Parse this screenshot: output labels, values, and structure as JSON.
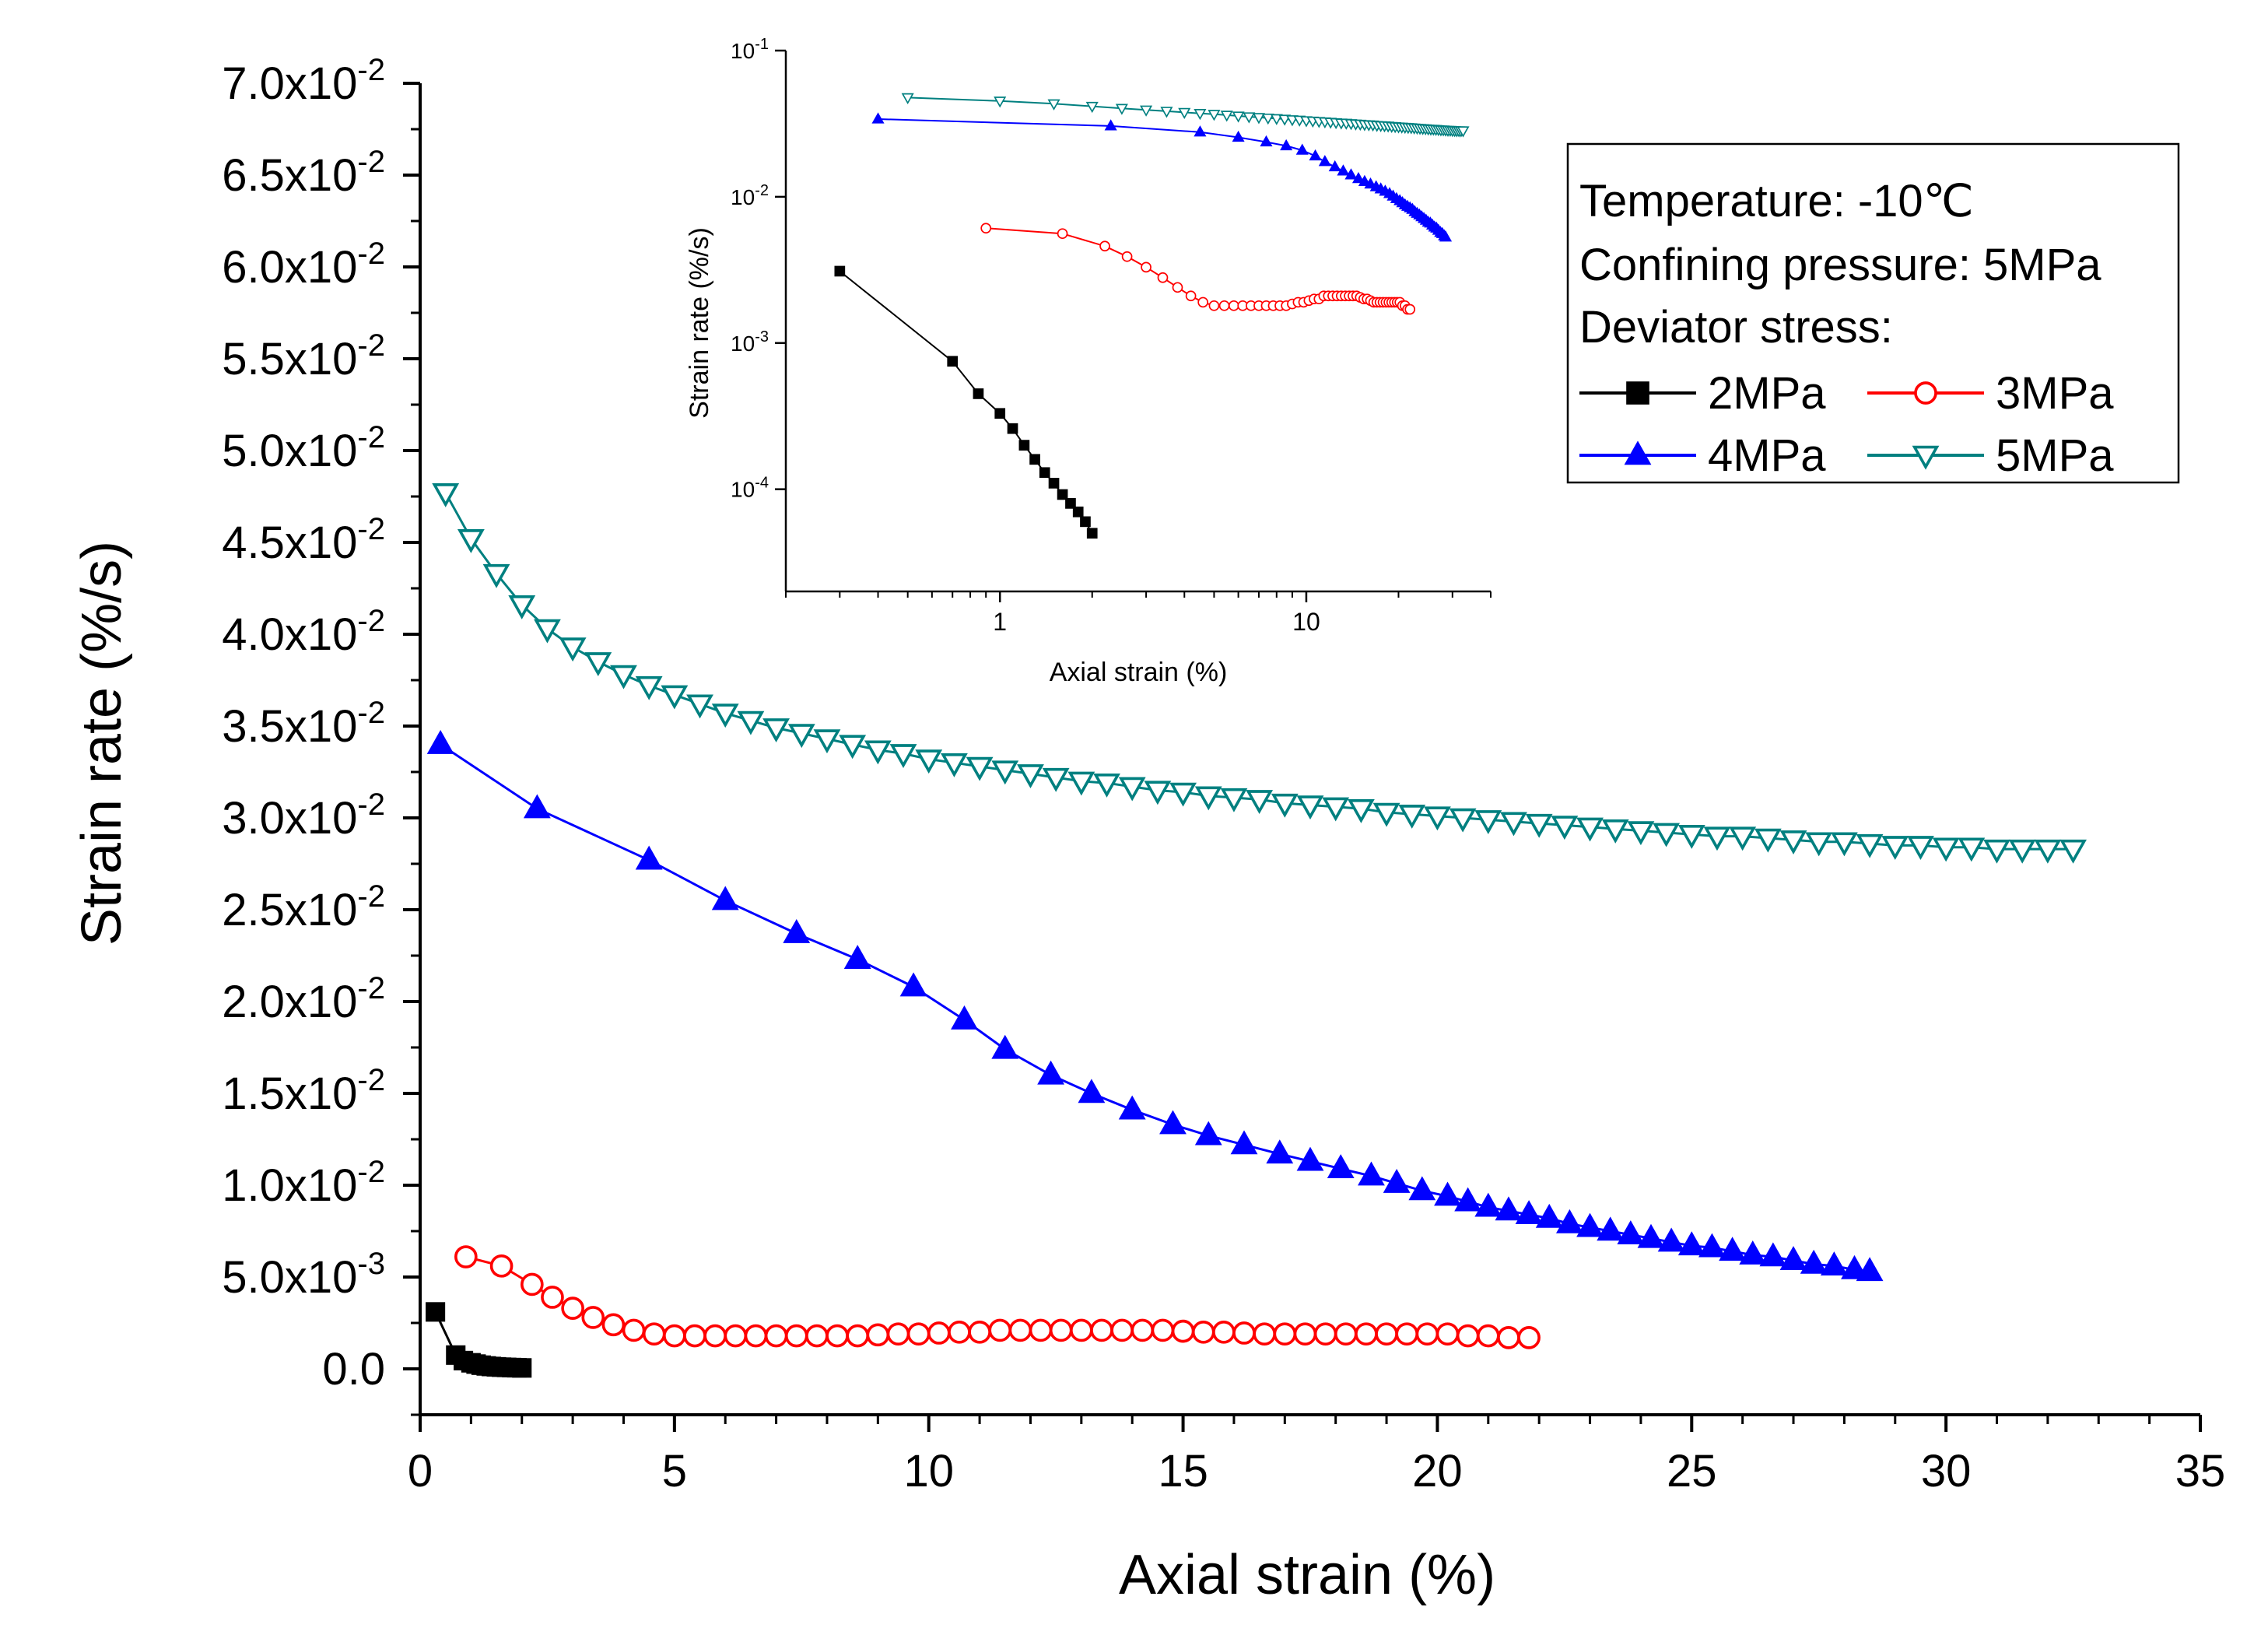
{
  "chart_data": [
    {
      "type": "scatter",
      "xlabel": "Axial strain (%)",
      "ylabel": "Strain rate (%/s)",
      "xlim": [
        0,
        35
      ],
      "ylim": [
        -0.0025,
        0.07
      ],
      "x_ticks": [
        {
          "value": 0,
          "label": "0"
        },
        {
          "value": 5,
          "label": "5"
        },
        {
          "value": 10,
          "label": "10"
        },
        {
          "value": 15,
          "label": "15"
        },
        {
          "value": 20,
          "label": "20"
        },
        {
          "value": 25,
          "label": "25"
        },
        {
          "value": 30,
          "label": "30"
        },
        {
          "value": 35,
          "label": "35"
        }
      ],
      "y_ticks": [
        {
          "value": 0,
          "mant": "0.0",
          "exp": ""
        },
        {
          "value": 0.005,
          "mant": "5.0x10",
          "exp": "-3"
        },
        {
          "value": 0.01,
          "mant": "1.0x10",
          "exp": "-2"
        },
        {
          "value": 0.015,
          "mant": "1.5x10",
          "exp": "-2"
        },
        {
          "value": 0.02,
          "mant": "2.0x10",
          "exp": "-2"
        },
        {
          "value": 0.025,
          "mant": "2.5x10",
          "exp": "-2"
        },
        {
          "value": 0.03,
          "mant": "3.0x10",
          "exp": "-2"
        },
        {
          "value": 0.035,
          "mant": "3.5x10",
          "exp": "-2"
        },
        {
          "value": 0.04,
          "mant": "4.0x10",
          "exp": "-2"
        },
        {
          "value": 0.045,
          "mant": "4.5x10",
          "exp": "-2"
        },
        {
          "value": 0.05,
          "mant": "5.0x10",
          "exp": "-2"
        },
        {
          "value": 0.055,
          "mant": "5.5x10",
          "exp": "-2"
        },
        {
          "value": 0.06,
          "mant": "6.0x10",
          "exp": "-2"
        },
        {
          "value": 0.065,
          "mant": "6.5x10",
          "exp": "-2"
        },
        {
          "value": 0.07,
          "mant": "7.0x10",
          "exp": "-2"
        }
      ],
      "legend": {
        "placement": "top-right",
        "lines": [
          "Temperature: -10℃",
          "Confining pressure: 5MPa",
          "Deviator stress:"
        ]
      },
      "series": [
        {
          "name": "2MPa",
          "color": "#000000",
          "marker": "square-filled",
          "x": [
            0.3,
            0.7,
            0.85,
            1.0,
            1.1,
            1.2,
            1.3,
            1.4,
            1.5,
            1.6,
            1.7,
            1.8,
            1.9,
            2.0
          ],
          "y": [
            0.0031,
            0.00075,
            0.00045,
            0.00033,
            0.00026,
            0.0002,
            0.00016,
            0.00013,
            0.00011,
            9.2e-05,
            8e-05,
            7e-05,
            6e-05,
            5e-05
          ]
        },
        {
          "name": "3MPa",
          "color": "#ff0000",
          "marker": "circle-open",
          "x": [
            0.9,
            1.6,
            2.2,
            2.6,
            3.0,
            3.4,
            3.8,
            4.2,
            4.6,
            5.0,
            5.4,
            5.8,
            6.2,
            6.6,
            7.0,
            7.4,
            7.8,
            8.2,
            8.6,
            9.0,
            9.4,
            9.8,
            10.2,
            10.6,
            11.0,
            11.4,
            11.8,
            12.2,
            12.6,
            13.0,
            13.4,
            13.8,
            14.2,
            14.6,
            15.0,
            15.4,
            15.8,
            16.2,
            16.6,
            17.0,
            17.4,
            17.8,
            18.2,
            18.6,
            19.0,
            19.4,
            19.8,
            20.2,
            20.6,
            21.0,
            21.4,
            21.8
          ],
          "y": [
            0.0061,
            0.0056,
            0.0046,
            0.0039,
            0.0033,
            0.0028,
            0.0024,
            0.0021,
            0.0019,
            0.0018,
            0.0018,
            0.0018,
            0.0018,
            0.0018,
            0.0018,
            0.0018,
            0.0018,
            0.0018,
            0.0018,
            0.00185,
            0.0019,
            0.0019,
            0.00195,
            0.002,
            0.002,
            0.0021,
            0.0021,
            0.0021,
            0.0021,
            0.0021,
            0.0021,
            0.0021,
            0.0021,
            0.0021,
            0.00205,
            0.002,
            0.002,
            0.00195,
            0.0019,
            0.0019,
            0.0019,
            0.0019,
            0.0019,
            0.0019,
            0.0019,
            0.0019,
            0.0019,
            0.0019,
            0.0018,
            0.0018,
            0.0017,
            0.0017
          ]
        },
        {
          "name": "4MPa",
          "color": "#0000ff",
          "marker": "triangle-up-filled",
          "x": [
            0.4,
            2.3,
            4.5,
            6.0,
            7.4,
            8.6,
            9.7,
            10.7,
            11.5,
            12.4,
            13.2,
            14.0,
            14.8,
            15.5,
            16.2,
            16.9,
            17.5,
            18.1,
            18.7,
            19.2,
            19.7,
            20.2,
            20.6,
            21.0,
            21.4,
            21.8,
            22.2,
            22.6,
            23.0,
            23.4,
            23.8,
            24.2,
            24.6,
            25.0,
            25.4,
            25.8,
            26.2,
            26.6,
            27.0,
            27.4,
            27.8,
            28.2,
            28.5
          ],
          "y": [
            0.034,
            0.0305,
            0.0277,
            0.0255,
            0.0237,
            0.0223,
            0.0208,
            0.019,
            0.0174,
            0.016,
            0.015,
            0.0141,
            0.0133,
            0.0127,
            0.0122,
            0.0117,
            0.0113,
            0.0109,
            0.0105,
            0.0101,
            0.0097,
            0.0094,
            0.0091,
            0.0088,
            0.0086,
            0.0084,
            0.0082,
            0.0079,
            0.0077,
            0.0075,
            0.0073,
            0.0071,
            0.0069,
            0.0067,
            0.0066,
            0.0064,
            0.0062,
            0.0061,
            0.0059,
            0.0057,
            0.0056,
            0.0054,
            0.0053
          ]
        },
        {
          "name": "5MPa",
          "color": "#008080",
          "marker": "triangle-down-open",
          "x": [
            0.5,
            1.0,
            1.5,
            2.0,
            2.5,
            3.0,
            3.5,
            4.0,
            4.5,
            5.0,
            5.5,
            6.0,
            6.5,
            7.0,
            7.5,
            8.0,
            8.5,
            9.0,
            9.5,
            10.0,
            10.5,
            11.0,
            11.5,
            12.0,
            12.5,
            13.0,
            13.5,
            14.0,
            14.5,
            15.0,
            15.5,
            16.0,
            16.5,
            17.0,
            17.5,
            18.0,
            18.5,
            19.0,
            19.5,
            20.0,
            20.5,
            21.0,
            21.5,
            22.0,
            22.5,
            23.0,
            23.5,
            24.0,
            24.5,
            25.0,
            25.5,
            26.0,
            26.5,
            27.0,
            27.5,
            28.0,
            28.5,
            29.0,
            29.5,
            30.0,
            30.5,
            31.0,
            31.5,
            32.0,
            32.5
          ],
          "y": [
            0.0477,
            0.0452,
            0.0433,
            0.0416,
            0.0403,
            0.0393,
            0.0385,
            0.0378,
            0.0372,
            0.0367,
            0.0362,
            0.0357,
            0.0353,
            0.0349,
            0.0346,
            0.0343,
            0.034,
            0.0337,
            0.0335,
            0.0332,
            0.033,
            0.0328,
            0.0326,
            0.0324,
            0.0322,
            0.032,
            0.0319,
            0.0317,
            0.0315,
            0.0314,
            0.0312,
            0.0311,
            0.031,
            0.0308,
            0.0307,
            0.0306,
            0.0305,
            0.0303,
            0.0302,
            0.0301,
            0.03,
            0.0299,
            0.0298,
            0.0297,
            0.0296,
            0.0295,
            0.0294,
            0.0293,
            0.0292,
            0.0291,
            0.029,
            0.029,
            0.0289,
            0.0288,
            0.0287,
            0.0287,
            0.0286,
            0.0285,
            0.0285,
            0.0284,
            0.0284,
            0.0283,
            0.0283,
            0.0283,
            0.0283
          ]
        }
      ]
    },
    {
      "type": "scatter",
      "xlabel": "Axial strain (%)",
      "ylabel": "Strain rate (%/s)",
      "x_scale": "log",
      "y_scale": "log",
      "xlim": [
        0.2,
        40
      ],
      "ylim": [
        2e-05,
        0.1
      ],
      "x_ticks": [
        {
          "value": 1,
          "label": "1"
        },
        {
          "value": 10,
          "label": "10"
        }
      ],
      "y_ticks": [
        {
          "value": 0.1,
          "exp": "-1"
        },
        {
          "value": 0.01,
          "exp": "-2"
        },
        {
          "value": 0.001,
          "exp": "-3"
        },
        {
          "value": 0.0001,
          "exp": "-4"
        }
      ],
      "y_tick_base": "10",
      "series_ref": [
        "2MPa",
        "3MPa",
        "4MPa",
        "5MPa"
      ]
    }
  ]
}
